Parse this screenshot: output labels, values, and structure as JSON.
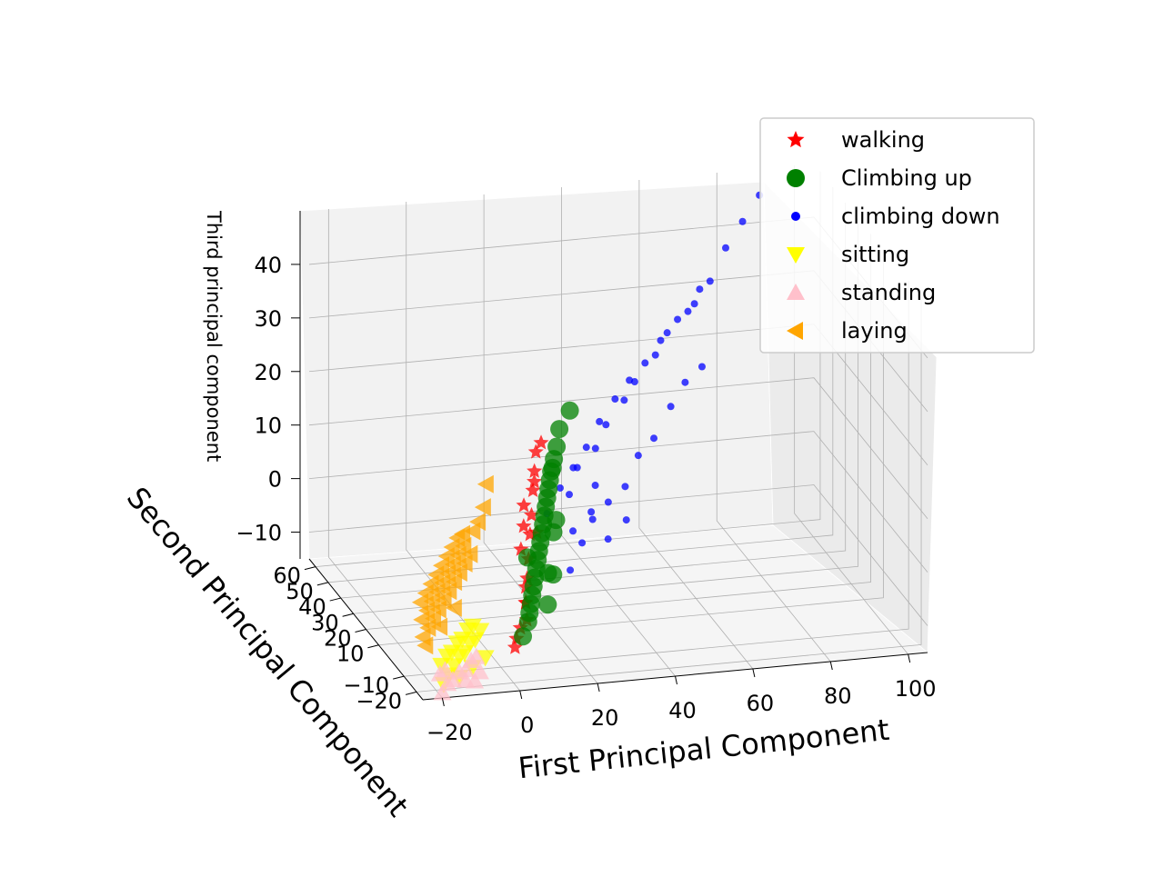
{
  "chart_data": {
    "type": "scatter",
    "projection": "3d",
    "title": "",
    "xlabel": "First Principal Component",
    "ylabel": "Second Principal Component",
    "zlabel": "Third principal component",
    "grid": true,
    "legend_position": "top-right",
    "x_ticks": [
      "−20",
      "0",
      "20",
      "40",
      "60",
      "80",
      "100"
    ],
    "y_ticks": [
      "−20",
      "−10",
      "10",
      "20",
      "30",
      "40",
      "50",
      "60"
    ],
    "z_ticks": [
      "−10",
      "0",
      "10",
      "20",
      "30",
      "40"
    ],
    "xlim": [
      -25,
      105
    ],
    "ylim": [
      -25,
      65
    ],
    "zlim": [
      -15,
      50
    ],
    "series": [
      {
        "name": "walking",
        "color": "#ff0000",
        "marker": "star",
        "points": [
          [
            2,
            -15,
            -10
          ],
          [
            5,
            -10,
            -8
          ],
          [
            8,
            -5,
            -5
          ],
          [
            10,
            0,
            -2
          ],
          [
            12,
            5,
            0
          ],
          [
            14,
            10,
            3
          ],
          [
            16,
            15,
            5
          ],
          [
            18,
            20,
            8
          ],
          [
            6,
            -12,
            -6
          ],
          [
            9,
            -2,
            -3
          ],
          [
            11,
            8,
            1
          ],
          [
            13,
            12,
            4
          ],
          [
            15,
            18,
            6
          ],
          [
            20,
            25,
            10
          ],
          [
            22,
            30,
            12
          ],
          [
            7,
            -8,
            -4
          ],
          [
            17,
            14,
            2
          ],
          [
            19,
            22,
            9
          ],
          [
            24,
            32,
            13
          ],
          [
            3,
            -13,
            -9
          ]
        ]
      },
      {
        "name": "Climbing up",
        "color": "#008000",
        "marker": "circle",
        "points": [
          [
            5,
            -12,
            -9
          ],
          [
            8,
            -8,
            -6
          ],
          [
            10,
            -4,
            -4
          ],
          [
            12,
            0,
            -2
          ],
          [
            14,
            4,
            0
          ],
          [
            16,
            8,
            2
          ],
          [
            18,
            12,
            4
          ],
          [
            20,
            16,
            6
          ],
          [
            22,
            20,
            8
          ],
          [
            24,
            24,
            10
          ],
          [
            26,
            28,
            11
          ],
          [
            28,
            32,
            12
          ],
          [
            9,
            -6,
            -5
          ],
          [
            11,
            -2,
            -3
          ],
          [
            13,
            2,
            -1
          ],
          [
            15,
            6,
            1
          ],
          [
            17,
            10,
            3
          ],
          [
            19,
            14,
            5
          ],
          [
            21,
            18,
            7
          ],
          [
            23,
            22,
            9
          ],
          [
            25,
            26,
            10
          ],
          [
            30,
            36,
            14
          ],
          [
            34,
            40,
            16
          ],
          [
            7,
            -10,
            -7
          ],
          [
            12,
            6,
            0
          ],
          [
            16,
            2,
            -2
          ],
          [
            20,
            10,
            3
          ],
          [
            14,
            -4,
            -6
          ],
          [
            18,
            4,
            -3
          ],
          [
            22,
            14,
            4
          ]
        ]
      },
      {
        "name": "climbing down",
        "color": "#0000ff",
        "marker": "dot",
        "points": [
          [
            20,
            15,
            5
          ],
          [
            25,
            20,
            8
          ],
          [
            30,
            25,
            10
          ],
          [
            35,
            30,
            12
          ],
          [
            40,
            35,
            15
          ],
          [
            45,
            38,
            18
          ],
          [
            50,
            42,
            20
          ],
          [
            55,
            45,
            22
          ],
          [
            60,
            48,
            25
          ],
          [
            65,
            50,
            28
          ],
          [
            70,
            52,
            30
          ],
          [
            75,
            55,
            33
          ],
          [
            80,
            58,
            38
          ],
          [
            85,
            60,
            42
          ],
          [
            28,
            22,
            6
          ],
          [
            32,
            28,
            9
          ],
          [
            38,
            32,
            11
          ],
          [
            42,
            36,
            14
          ],
          [
            48,
            40,
            17
          ],
          [
            52,
            44,
            19
          ],
          [
            58,
            46,
            23
          ],
          [
            62,
            49,
            26
          ],
          [
            68,
            51,
            29
          ],
          [
            72,
            54,
            32
          ],
          [
            35,
            25,
            0
          ],
          [
            40,
            28,
            2
          ],
          [
            45,
            30,
            4
          ],
          [
            30,
            18,
            -2
          ],
          [
            25,
            12,
            -5
          ],
          [
            38,
            22,
            -3
          ],
          [
            44,
            26,
            -1
          ],
          [
            50,
            35,
            8
          ],
          [
            55,
            38,
            10
          ],
          [
            33,
            20,
            3
          ],
          [
            27,
            16,
            1
          ],
          [
            90,
            62,
            46
          ],
          [
            60,
            40,
            15
          ],
          [
            65,
            44,
            18
          ],
          [
            70,
            46,
            20
          ],
          [
            36,
            26,
            6
          ]
        ]
      },
      {
        "name": "sitting",
        "color": "#ffff00",
        "marker": "triangle-down",
        "points": [
          [
            -18,
            -20,
            -14
          ],
          [
            -16,
            -18,
            -13
          ],
          [
            -14,
            -16,
            -12
          ],
          [
            -12,
            -14,
            -11
          ],
          [
            -10,
            -12,
            -11
          ],
          [
            -8,
            -10,
            -10
          ],
          [
            -6,
            -8,
            -10
          ],
          [
            -4,
            -6,
            -9
          ],
          [
            -17,
            -15,
            -12
          ],
          [
            -15,
            -13,
            -11
          ],
          [
            -13,
            -11,
            -11
          ],
          [
            -11,
            -9,
            -10
          ],
          [
            -9,
            -7,
            -10
          ],
          [
            -7,
            -5,
            -9
          ],
          [
            -5,
            -3,
            -9
          ],
          [
            -14,
            -20,
            -13
          ],
          [
            -10,
            -18,
            -12
          ],
          [
            -6,
            -16,
            -11
          ]
        ]
      },
      {
        "name": "standing",
        "color": "#ffc0cb",
        "marker": "triangle-up",
        "points": [
          [
            -19,
            -22,
            -15
          ],
          [
            -17,
            -20,
            -14
          ],
          [
            -15,
            -18,
            -14
          ],
          [
            -13,
            -17,
            -13
          ],
          [
            -11,
            -16,
            -13
          ],
          [
            -9,
            -14,
            -12
          ],
          [
            -7,
            -12,
            -12
          ],
          [
            -18,
            -17,
            -13
          ],
          [
            -16,
            -15,
            -13
          ],
          [
            -12,
            -19,
            -14
          ],
          [
            -8,
            -18,
            -13
          ],
          [
            -10,
            -20,
            -14
          ]
        ]
      },
      {
        "name": "laying",
        "color": "#ffa500",
        "marker": "triangle-left",
        "points": [
          [
            -20,
            -10,
            -8
          ],
          [
            -18,
            -8,
            -7
          ],
          [
            -16,
            -6,
            -6
          ],
          [
            -14,
            -4,
            -5
          ],
          [
            -12,
            -2,
            -4
          ],
          [
            -10,
            0,
            -3
          ],
          [
            -8,
            2,
            -2
          ],
          [
            -6,
            4,
            -1
          ],
          [
            -4,
            6,
            0
          ],
          [
            -2,
            8,
            1
          ],
          [
            -19,
            -6,
            -6
          ],
          [
            -17,
            -4,
            -5
          ],
          [
            -15,
            -2,
            -4
          ],
          [
            -13,
            0,
            -3
          ],
          [
            -11,
            2,
            -2
          ],
          [
            -9,
            4,
            -1
          ],
          [
            -7,
            6,
            0
          ],
          [
            -5,
            8,
            1
          ],
          [
            -3,
            10,
            2
          ],
          [
            -18,
            -2,
            -4
          ],
          [
            -16,
            0,
            -3
          ],
          [
            -14,
            2,
            -2
          ],
          [
            -12,
            4,
            -1
          ],
          [
            -10,
            6,
            0
          ],
          [
            -8,
            8,
            1
          ],
          [
            -6,
            10,
            2
          ],
          [
            -4,
            12,
            3
          ],
          [
            -20,
            -12,
            -9
          ],
          [
            -15,
            -8,
            -7
          ],
          [
            -10,
            -4,
            -5
          ],
          [
            0,
            12,
            4
          ],
          [
            2,
            14,
            5
          ],
          [
            4,
            16,
            7
          ],
          [
            -2,
            14,
            3
          ],
          [
            6,
            20,
            10
          ]
        ]
      }
    ]
  }
}
